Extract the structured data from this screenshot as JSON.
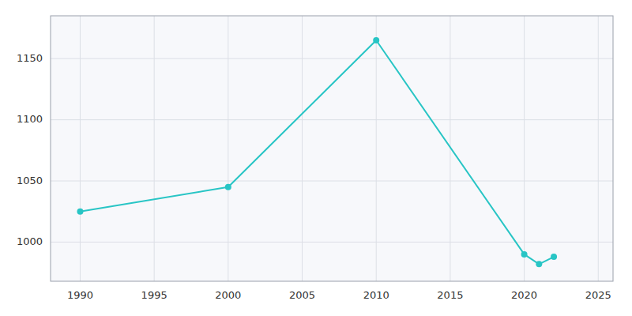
{
  "chart_data": {
    "type": "line",
    "x": [
      1990,
      2000,
      2010,
      2020,
      2021,
      2022
    ],
    "values": [
      1025,
      1045,
      1165,
      990,
      982,
      988
    ],
    "color": "#28c5c5",
    "marker": "circle",
    "xlim": [
      1988,
      2026
    ],
    "ylim": [
      968,
      1185
    ],
    "xticks": [
      1990,
      1995,
      2000,
      2005,
      2010,
      2015,
      2020,
      2025
    ],
    "yticks": [
      1000,
      1050,
      1100,
      1150
    ],
    "grid": true
  }
}
